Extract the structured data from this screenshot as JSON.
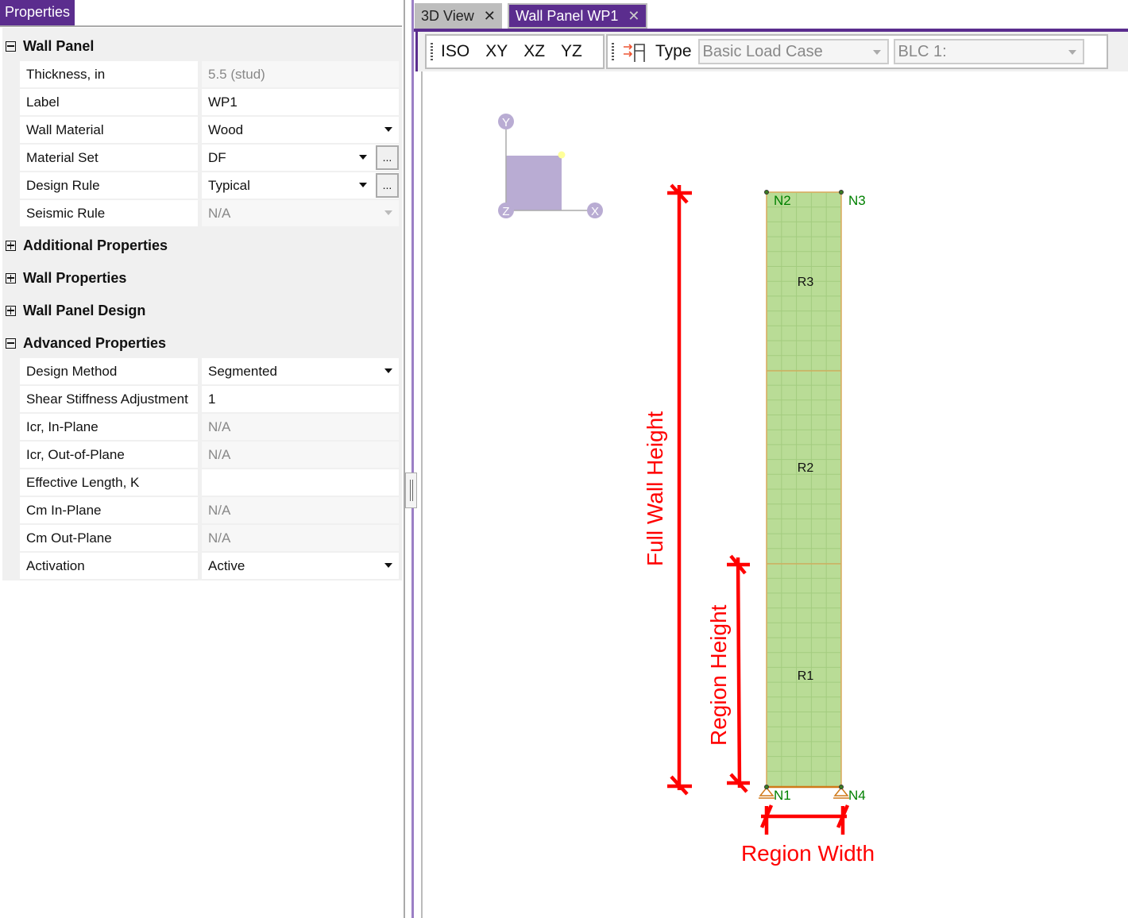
{
  "properties_panel": {
    "tab_label": "Properties",
    "sections": {
      "wall_panel": "Wall Panel",
      "additional": "Additional Properties",
      "wall_properties": "Wall Properties",
      "wall_panel_design": "Wall Panel Design",
      "advanced": "Advanced Properties"
    },
    "wall_panel_rows": [
      {
        "label": "Thickness, in",
        "value": "5.5 (stud)"
      },
      {
        "label": "Label",
        "value": "WP1"
      },
      {
        "label": "Wall Material",
        "value": "Wood"
      },
      {
        "label": "Material Set",
        "value": "DF",
        "button": "..."
      },
      {
        "label": "Design Rule",
        "value": "Typical",
        "button": "..."
      },
      {
        "label": "Seismic Rule",
        "value": "N/A"
      }
    ],
    "advanced_rows": [
      {
        "label": "Design Method",
        "value": "Segmented"
      },
      {
        "label": "Shear Stiffness Adjustment",
        "value": "1"
      },
      {
        "label": "Icr, In-Plane",
        "value": "N/A"
      },
      {
        "label": "Icr, Out-of-Plane",
        "value": "N/A"
      },
      {
        "label": "Effective Length, K",
        "value": ""
      },
      {
        "label": "Cm In-Plane",
        "value": "N/A"
      },
      {
        "label": "Cm Out-Plane",
        "value": "N/A"
      },
      {
        "label": "Activation",
        "value": "Active"
      }
    ]
  },
  "tabs": [
    {
      "label": "3D View",
      "active": false
    },
    {
      "label": "Wall Panel WP1",
      "active": true
    }
  ],
  "toolbar": {
    "views": [
      "ISO",
      "XY",
      "XZ",
      "YZ"
    ],
    "type_label": "Type",
    "type_value": "Basic Load Case",
    "case_value": "BLC 1:"
  },
  "canvas": {
    "axes": {
      "y": "Y",
      "z": "Z",
      "x": "X"
    },
    "nodes": {
      "n1": "N1",
      "n2": "N2",
      "n3": "N3",
      "n4": "N4"
    },
    "regions": {
      "r1": "R1",
      "r2": "R2",
      "r3": "R3"
    },
    "annotations": {
      "full_height": "Full Wall Height",
      "region_height": "Region Height",
      "region_width": "Region Width"
    },
    "colors": {
      "panel": "#b9dc96",
      "annotation": "#ff0000",
      "node_label": "#008000",
      "accent": "#5b2d8e"
    }
  }
}
